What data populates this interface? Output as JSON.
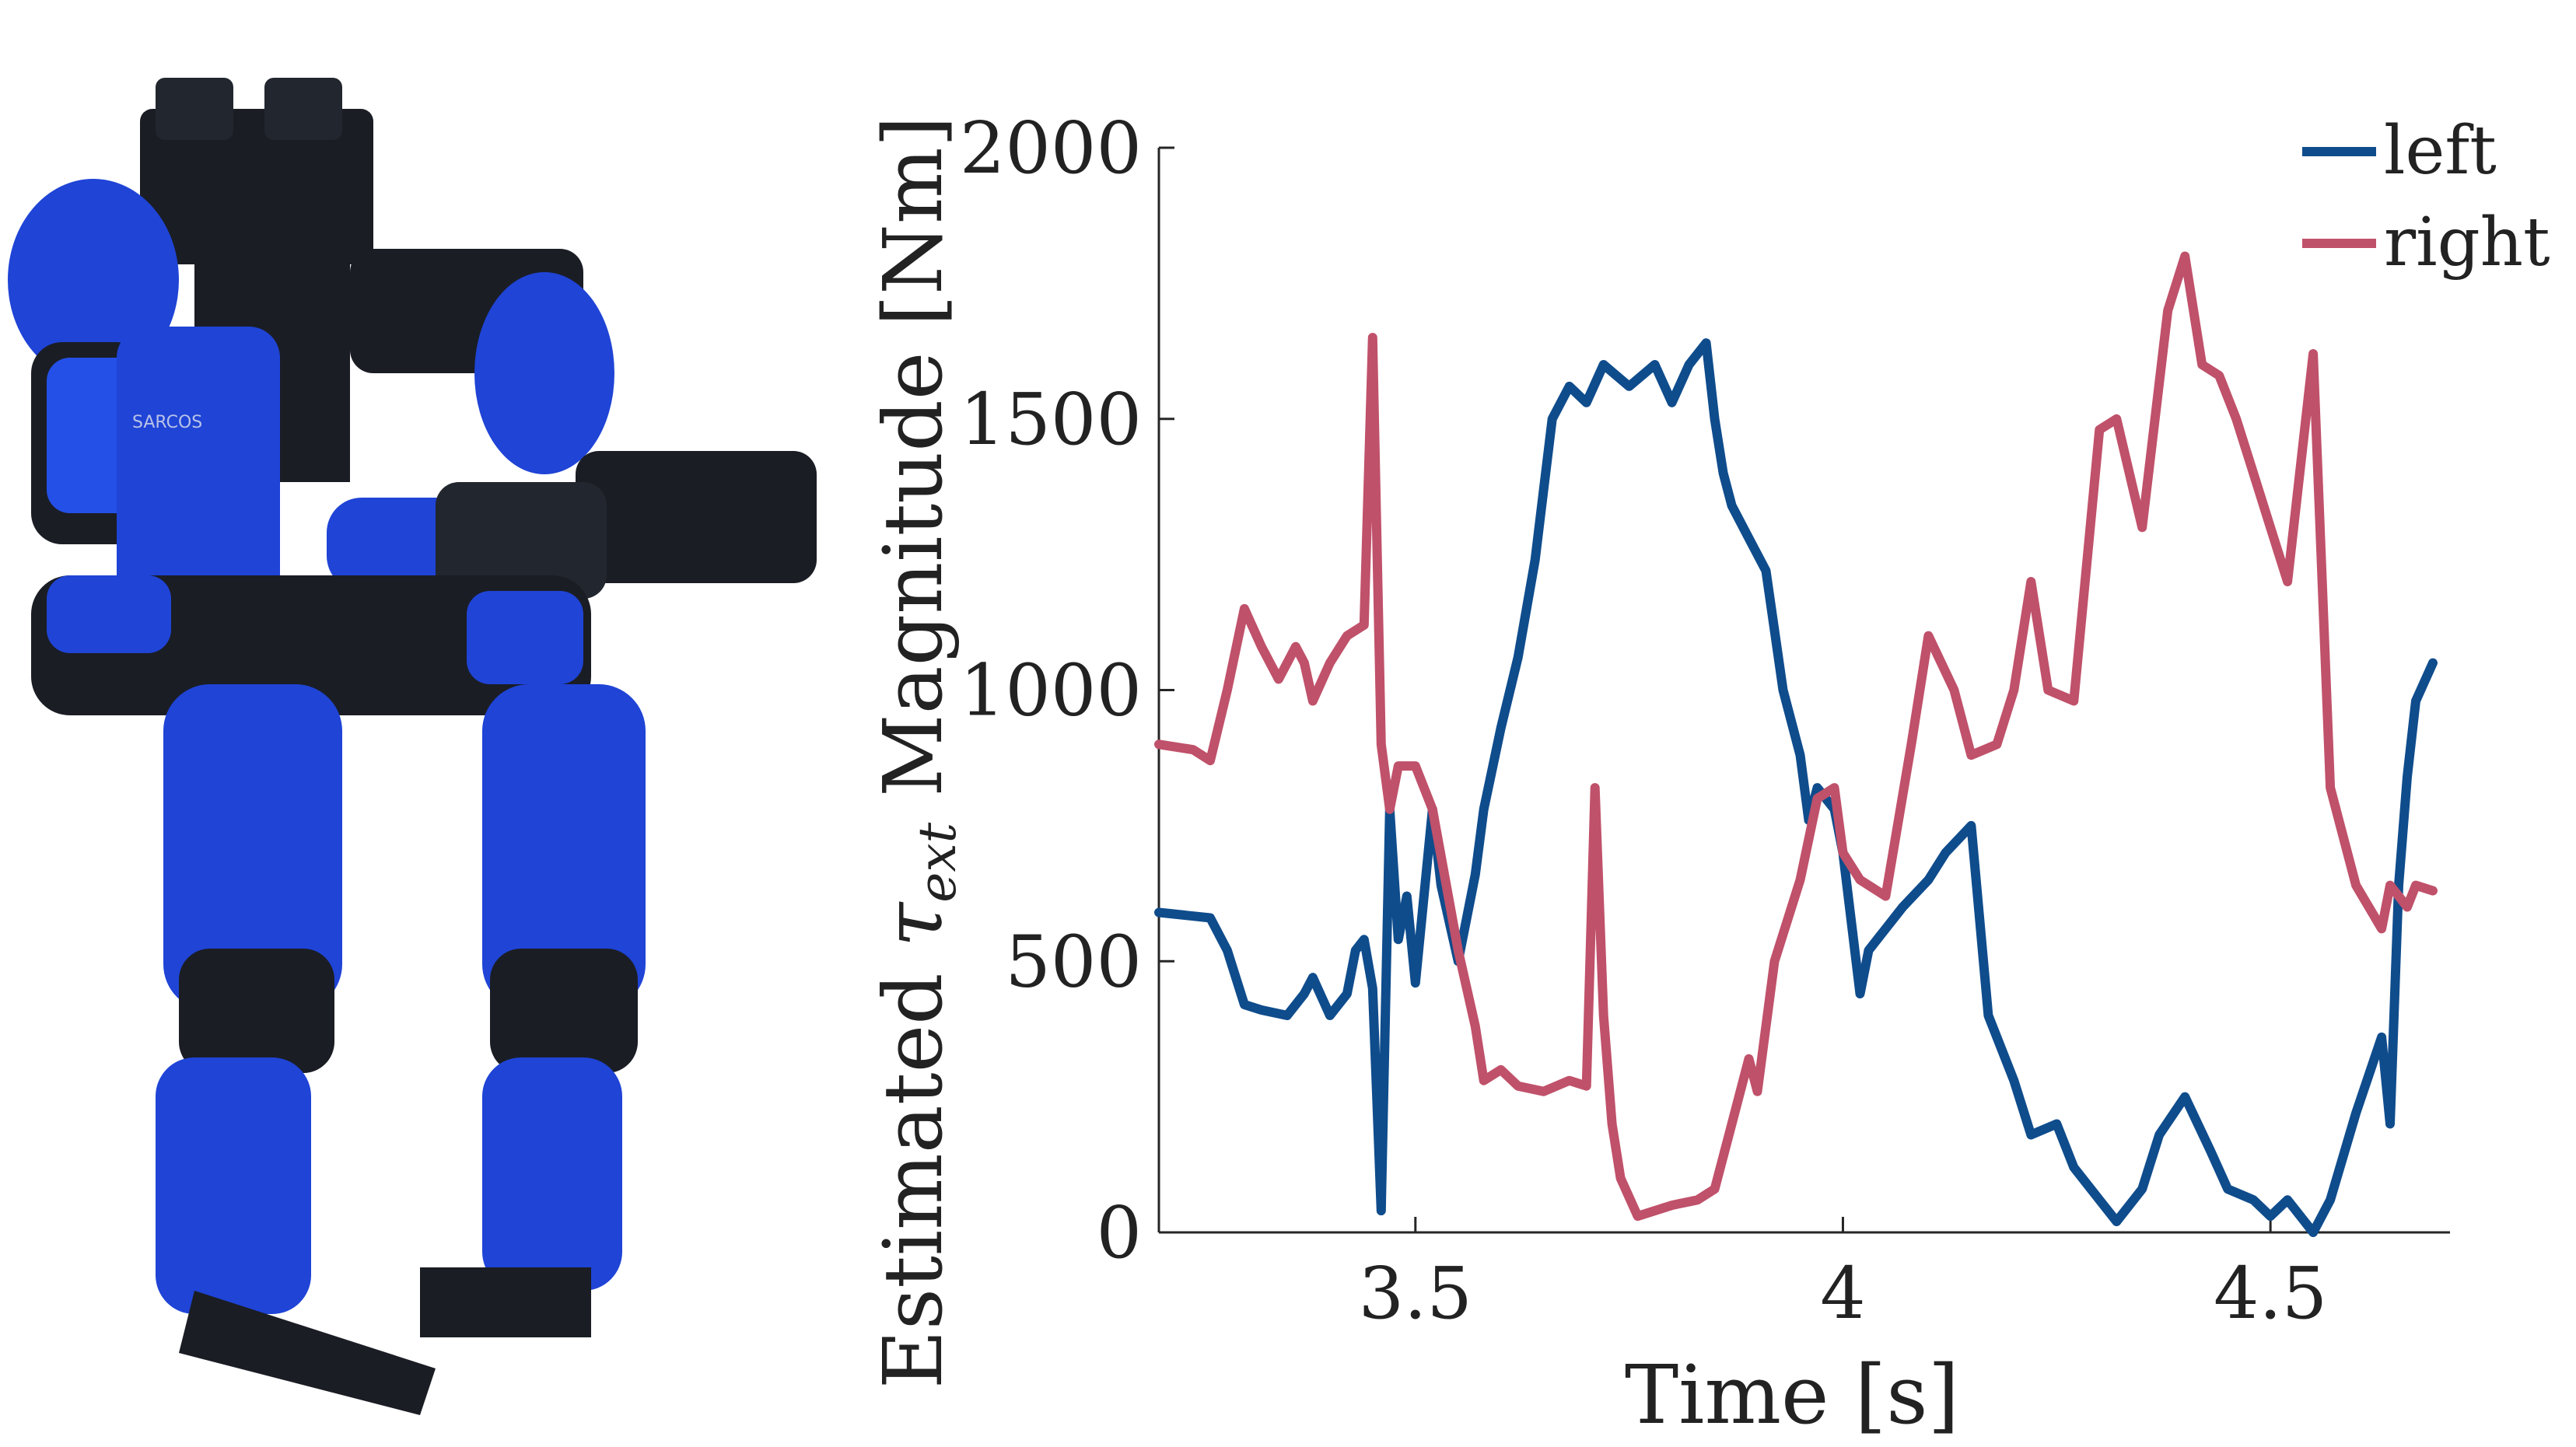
{
  "figure": {
    "robot_illustration": {
      "subject": "exoskeleton robot",
      "logo_text": "SARCOS",
      "colors": {
        "shell": "#1f44d6",
        "frame": "#1a1d24"
      }
    }
  },
  "chart_data": {
    "type": "line",
    "title": "",
    "xlabel": "Time [s]",
    "ylabel_prefix": "Estimated ",
    "ylabel_symbol": "τ",
    "ylabel_subscript": "ext",
    "ylabel_suffix": " Magnitude [Nm]",
    "xlim": [
      3.2,
      4.71
    ],
    "ylim": [
      0,
      2000
    ],
    "xticks": [
      3.5,
      4,
      4.5
    ],
    "xtick_labels": [
      "3.5",
      "4",
      "4.5"
    ],
    "yticks": [
      0,
      500,
      1000,
      1500,
      2000
    ],
    "ytick_labels": [
      "0",
      "500",
      "1000",
      "1500",
      "2000"
    ],
    "grid": false,
    "legend_position": "top-right",
    "series": [
      {
        "name": "left",
        "color": "#0f4c8c",
        "x": [
          3.2,
          3.26,
          3.28,
          3.3,
          3.32,
          3.35,
          3.37,
          3.38,
          3.4,
          3.42,
          3.43,
          3.44,
          3.45,
          3.46,
          3.47,
          3.48,
          3.49,
          3.5,
          3.52,
          3.53,
          3.55,
          3.57,
          3.58,
          3.6,
          3.62,
          3.64,
          3.66,
          3.68,
          3.7,
          3.72,
          3.75,
          3.78,
          3.8,
          3.82,
          3.84,
          3.85,
          3.86,
          3.87,
          3.89,
          3.91,
          3.93,
          3.95,
          3.96,
          3.97,
          3.99,
          4.0,
          4.02,
          4.03,
          4.05,
          4.07,
          4.1,
          4.12,
          4.15,
          4.17,
          4.2,
          4.22,
          4.25,
          4.27,
          4.3,
          4.32,
          4.35,
          4.37,
          4.4,
          4.43,
          4.45,
          4.48,
          4.5,
          4.52,
          4.55,
          4.57,
          4.6,
          4.63,
          4.64,
          4.65,
          4.66,
          4.67,
          4.69
        ],
        "y": [
          590,
          580,
          520,
          420,
          410,
          400,
          440,
          470,
          400,
          440,
          520,
          540,
          450,
          40,
          780,
          540,
          620,
          460,
          780,
          640,
          500,
          660,
          780,
          930,
          1060,
          1240,
          1500,
          1560,
          1530,
          1600,
          1560,
          1600,
          1530,
          1600,
          1640,
          1500,
          1400,
          1340,
          1280,
          1220,
          1000,
          880,
          760,
          820,
          780,
          700,
          440,
          520,
          560,
          600,
          650,
          700,
          750,
          400,
          280,
          180,
          200,
          120,
          60,
          20,
          80,
          180,
          250,
          150,
          80,
          60,
          30,
          60,
          0,
          60,
          220,
          360,
          200,
          640,
          840,
          980,
          1050
        ]
      },
      {
        "name": "right",
        "color": "#c0516a",
        "x": [
          3.2,
          3.24,
          3.26,
          3.28,
          3.3,
          3.32,
          3.34,
          3.36,
          3.37,
          3.38,
          3.4,
          3.42,
          3.44,
          3.45,
          3.46,
          3.47,
          3.48,
          3.5,
          3.52,
          3.55,
          3.57,
          3.58,
          3.6,
          3.62,
          3.65,
          3.68,
          3.7,
          3.71,
          3.72,
          3.73,
          3.74,
          3.76,
          3.78,
          3.8,
          3.83,
          3.85,
          3.87,
          3.89,
          3.9,
          3.92,
          3.95,
          3.97,
          3.99,
          4.0,
          4.02,
          4.05,
          4.08,
          4.1,
          4.13,
          4.15,
          4.18,
          4.2,
          4.22,
          4.24,
          4.27,
          4.3,
          4.32,
          4.35,
          4.38,
          4.4,
          4.42,
          4.44,
          4.46,
          4.48,
          4.5,
          4.52,
          4.55,
          4.57,
          4.6,
          4.63,
          4.64,
          4.65,
          4.66,
          4.67,
          4.69
        ],
        "y": [
          900,
          890,
          870,
          1000,
          1150,
          1080,
          1020,
          1080,
          1050,
          980,
          1050,
          1100,
          1120,
          1650,
          900,
          780,
          860,
          860,
          780,
          520,
          380,
          280,
          300,
          270,
          260,
          280,
          270,
          820,
          400,
          200,
          100,
          30,
          40,
          50,
          60,
          80,
          200,
          320,
          260,
          500,
          650,
          800,
          820,
          700,
          650,
          620,
          900,
          1100,
          1000,
          880,
          900,
          1000,
          1200,
          1000,
          980,
          1480,
          1500,
          1300,
          1700,
          1800,
          1600,
          1580,
          1500,
          1400,
          1300,
          1200,
          1620,
          820,
          640,
          560,
          640,
          620,
          600,
          640,
          630
        ]
      }
    ]
  }
}
